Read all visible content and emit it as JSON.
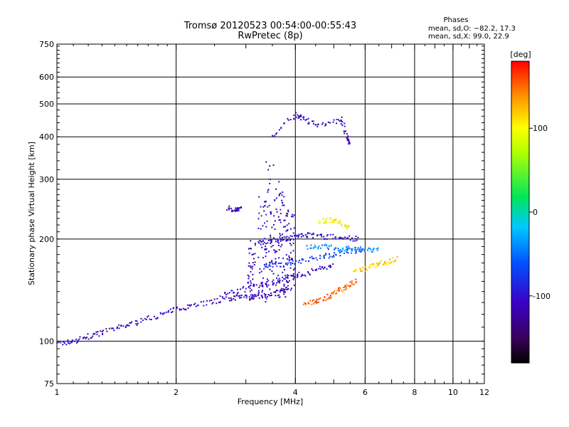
{
  "chart_data": {
    "type": "scatter",
    "title": "Tromsø 20120523 00:54:00-00:55:43",
    "subtitle": "RwPretec (8p)",
    "xlabel": "Frequency [MHz]",
    "ylabel": "Stationary phase Virtual Height [km]",
    "xscale": "log",
    "yscale": "log",
    "xlim": [
      1,
      12
    ],
    "ylim": [
      75,
      750
    ],
    "x_ticks": [
      1,
      2,
      4,
      6,
      8,
      10,
      12
    ],
    "y_ticks": [
      75,
      100,
      200,
      300,
      400,
      500,
      600,
      750
    ],
    "grid": true,
    "phase_stats": {
      "heading": "Phases",
      "o_mode": "mean, sd,O: −82.2, 17.3",
      "x_mode": "mean, sd,X:  99.0, 22.9"
    },
    "colorbar": {
      "unit": "[deg]",
      "range": [
        -180,
        180
      ],
      "ticks": [
        100,
        0,
        -100
      ],
      "colormap": "rainbow"
    },
    "traces": [
      {
        "name": "",
        "phase": -110,
        "points": [
          [
            1.0,
            98
          ],
          [
            1.1,
            100
          ],
          [
            1.2,
            103
          ],
          [
            1.3,
            106
          ],
          [
            1.45,
            110
          ],
          [
            1.6,
            114
          ],
          [
            1.8,
            119
          ],
          [
            2.0,
            124
          ],
          [
            2.2,
            128
          ],
          [
            2.5,
            131
          ],
          [
            2.8,
            134
          ],
          [
            3.0,
            135
          ],
          [
            3.3,
            136
          ],
          [
            3.6,
            139
          ],
          [
            3.9,
            143
          ]
        ]
      },
      {
        "name": "",
        "phase": -105,
        "points": [
          [
            2.6,
            137
          ],
          [
            2.9,
            141
          ],
          [
            3.3,
            147
          ],
          [
            3.6,
            150
          ],
          [
            3.9,
            154
          ],
          [
            4.2,
            158
          ],
          [
            4.6,
            163
          ],
          [
            5.0,
            168
          ]
        ]
      },
      {
        "name": "",
        "phase": -100,
        "points": [
          [
            3.2,
            195
          ],
          [
            3.5,
            198
          ],
          [
            3.8,
            201
          ],
          [
            4.1,
            205
          ],
          [
            4.4,
            205
          ],
          [
            4.8,
            203
          ],
          [
            5.3,
            202
          ],
          [
            5.8,
            200
          ]
        ]
      },
      {
        "name": "",
        "phase": -70,
        "points": [
          [
            3.3,
            165
          ],
          [
            3.7,
            168
          ],
          [
            4.1,
            172
          ],
          [
            4.6,
            177
          ],
          [
            5.0,
            180
          ],
          [
            5.5,
            184
          ],
          [
            6.0,
            186
          ]
        ]
      },
      {
        "name": "",
        "phase": -40,
        "points": [
          [
            4.3,
            190
          ],
          [
            4.7,
            190
          ],
          [
            5.1,
            188
          ],
          [
            5.5,
            187
          ],
          [
            6.0,
            186
          ],
          [
            6.5,
            185
          ]
        ]
      },
      {
        "name": "",
        "phase": 150,
        "points": [
          [
            4.2,
            129
          ],
          [
            4.5,
            131
          ],
          [
            4.8,
            135
          ],
          [
            5.1,
            140
          ],
          [
            5.4,
            145
          ],
          [
            5.7,
            150
          ]
        ]
      },
      {
        "name": "",
        "phase": 120,
        "points": [
          [
            5.6,
            160
          ],
          [
            6.0,
            163
          ],
          [
            6.4,
            168
          ],
          [
            6.8,
            171
          ],
          [
            7.2,
            175
          ]
        ]
      },
      {
        "name": "",
        "phase": 100,
        "points": [
          [
            4.6,
            225
          ],
          [
            4.9,
            228
          ],
          [
            5.2,
            222
          ],
          [
            5.5,
            216
          ]
        ]
      },
      {
        "name": "",
        "phase": -110,
        "points": [
          [
            2.7,
            246
          ],
          [
            2.85,
            244
          ],
          [
            2.9,
            248
          ]
        ]
      },
      {
        "name": "",
        "phase": -110,
        "points": [
          [
            3.5,
            400
          ],
          [
            4.0,
            465
          ],
          [
            4.2,
            450
          ],
          [
            4.6,
            430
          ],
          [
            5.2,
            450
          ],
          [
            5.4,
            400
          ],
          [
            5.5,
            380
          ]
        ]
      }
    ],
    "columns": [
      {
        "name": "",
        "phase": -110,
        "x": 3.1,
        "ymin": 130,
        "ymax": 200
      },
      {
        "name": "",
        "phase": -110,
        "x": 3.3,
        "ymin": 130,
        "ymax": 270
      },
      {
        "name": "",
        "phase": -110,
        "x": 3.45,
        "ymin": 130,
        "ymax": 340
      },
      {
        "name": "",
        "phase": -110,
        "x": 3.6,
        "ymin": 133,
        "ymax": 300
      },
      {
        "name": "",
        "phase": -110,
        "x": 3.75,
        "ymin": 135,
        "ymax": 280
      },
      {
        "name": "",
        "phase": -110,
        "x": 3.9,
        "ymin": 140,
        "ymax": 250
      }
    ]
  }
}
